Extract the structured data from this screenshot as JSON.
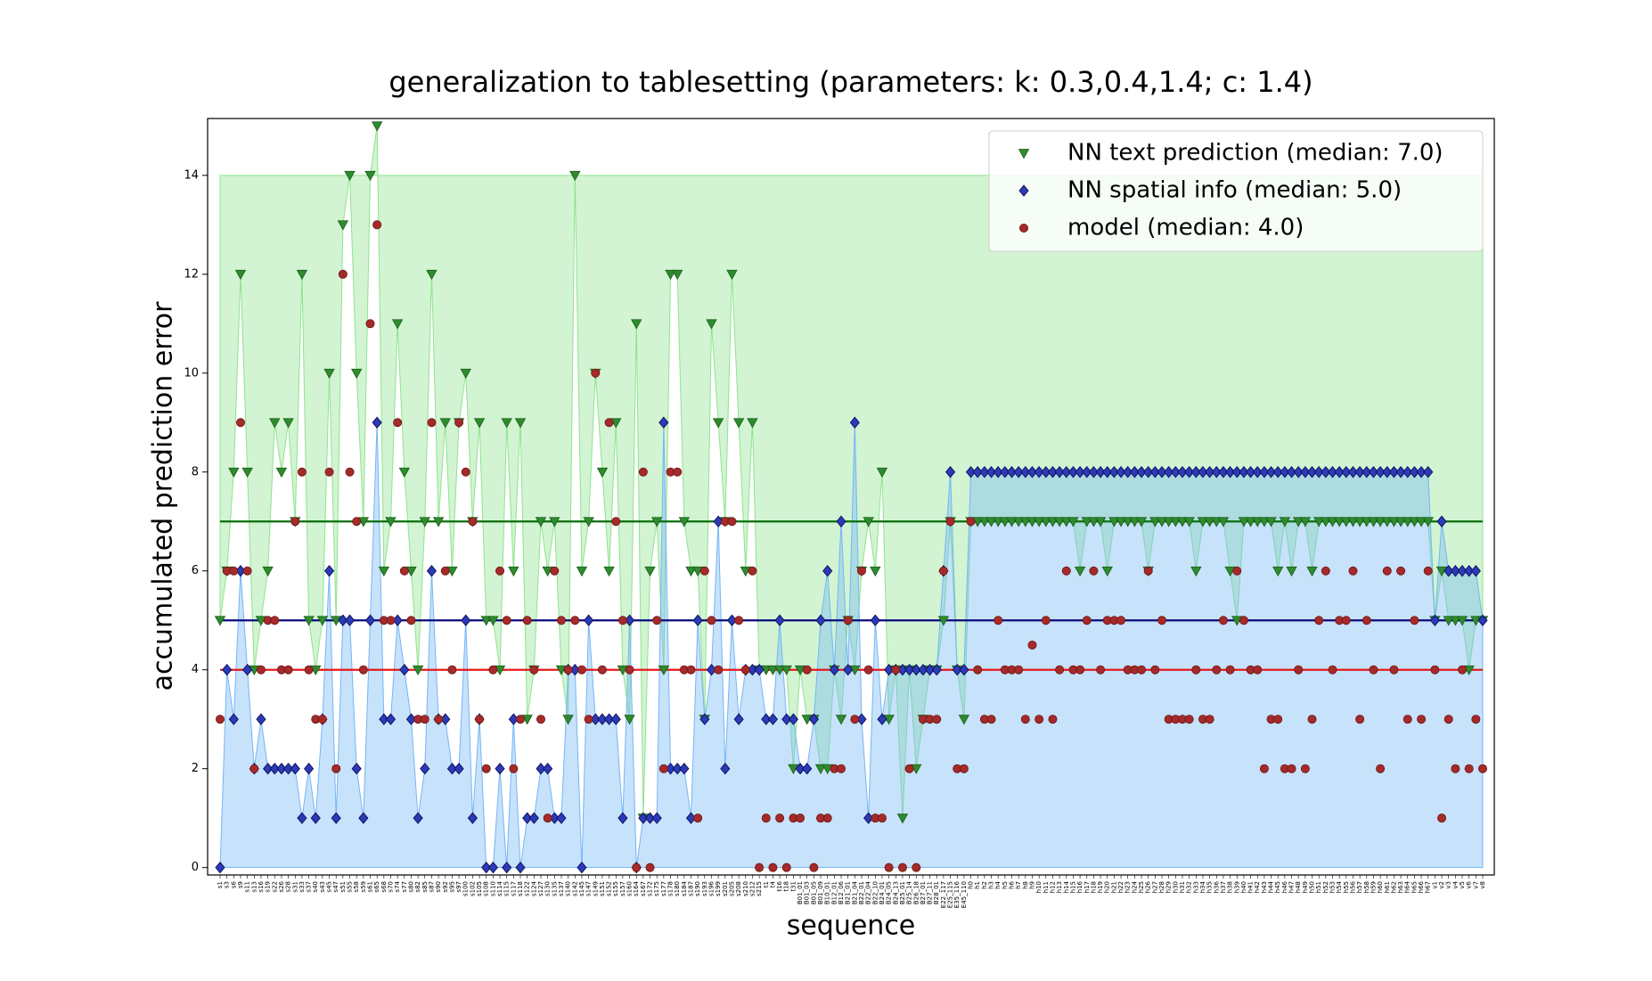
{
  "chart_data": {
    "type": "line-scatter",
    "title": "generalization to tablesetting (parameters: k: 0.3,0.4,1.4; c: 1.4)",
    "x_label": "sequence",
    "y_label": "accumulated prediction error",
    "ylim": [
      -0.15,
      15.15
    ],
    "yticks": [
      0,
      2,
      4,
      6,
      8,
      10,
      12,
      14
    ],
    "legend": "upper right",
    "categories": [
      "s1",
      "s3",
      "s6",
      "s9",
      "s11",
      "s13",
      "s16",
      "s19",
      "s22",
      "s26",
      "s28",
      "s31",
      "s33",
      "s37",
      "s40",
      "s43",
      "s45",
      "s47",
      "s51",
      "s55",
      "s58",
      "s59",
      "s61",
      "s65",
      "s68",
      "s70",
      "s74",
      "s77",
      "s80",
      "s82",
      "s85",
      "s87",
      "s90",
      "s92",
      "s95",
      "s97",
      "s100",
      "s102",
      "s105",
      "s108",
      "s110",
      "s114",
      "s115",
      "s117",
      "s118",
      "s122",
      "s124",
      "s127",
      "s130",
      "s135",
      "s137",
      "s140",
      "s142",
      "s145",
      "s147",
      "s149",
      "s151",
      "s152",
      "s155",
      "s157",
      "s160",
      "s164",
      "s167",
      "s172",
      "s175",
      "s177",
      "s178",
      "s180",
      "s184",
      "s187",
      "s190",
      "s193",
      "s196",
      "s199",
      "s201",
      "s205",
      "s208",
      "s210",
      "s212",
      "s215",
      "t1",
      "t4",
      "t16",
      "t18",
      "t31",
      "B01_01",
      "B01_03",
      "B01_05",
      "B01_09",
      "B10_01",
      "B12_01",
      "B12_06",
      "B21_01",
      "B21_04",
      "B22_01",
      "B22_04",
      "B22_10",
      "B24_01",
      "B24_05",
      "B24_13",
      "B25_01",
      "B25_14",
      "B26_18",
      "B27_01",
      "B27_11",
      "B28_01",
      "E22_117",
      "E25_115",
      "E35_116",
      "E45_110",
      "h0",
      "h1",
      "h2",
      "h3",
      "h4",
      "h5",
      "h6",
      "h7",
      "h8",
      "h9",
      "h10",
      "h11",
      "h12",
      "h13",
      "h14",
      "h15",
      "h16",
      "h17",
      "h18",
      "h19",
      "h20",
      "h21",
      "h22",
      "h23",
      "h24",
      "h25",
      "h26",
      "h27",
      "h28",
      "h29",
      "h30",
      "h31",
      "h32",
      "h33",
      "h34",
      "h35",
      "h36",
      "h37",
      "h38",
      "h39",
      "h40",
      "h41",
      "h42",
      "h43",
      "h44",
      "h45",
      "h46",
      "h47",
      "h48",
      "h49",
      "h50",
      "h51",
      "h52",
      "h53",
      "h54",
      "h55",
      "h56",
      "h57",
      "h58",
      "h59",
      "h60",
      "h61",
      "h62",
      "h63",
      "h64",
      "h65",
      "h66",
      "h67",
      "v1",
      "v2",
      "v3",
      "v4",
      "v5",
      "v6",
      "v7",
      "v8"
    ],
    "series": [
      {
        "name": "NN text prediction (median: 7.0)",
        "marker": "triangle-down",
        "color": "#2e8b2e",
        "edge_color": "#1a5e1a",
        "line_color": "#0a6e0a",
        "area_color": "#8fe38f",
        "fill_to": 14,
        "median": 7,
        "values": [
          5,
          6,
          8,
          12,
          8,
          4,
          5,
          6,
          9,
          8,
          9,
          7,
          12,
          5,
          4,
          5,
          10,
          5,
          13,
          14,
          10,
          7,
          14,
          15,
          6,
          7,
          11,
          8,
          6,
          4,
          7,
          12,
          7,
          9,
          6,
          9,
          10,
          7,
          9,
          5,
          5,
          4,
          9,
          6,
          9,
          3,
          4,
          7,
          6,
          7,
          4,
          3,
          14,
          6,
          7,
          10,
          8,
          6,
          9,
          4,
          3,
          11,
          1,
          6,
          7,
          4,
          12,
          12,
          7,
          6,
          6,
          3,
          11,
          9,
          7,
          12,
          9,
          6,
          9,
          4,
          4,
          4,
          4,
          4,
          2,
          4,
          3,
          3,
          2,
          2,
          4,
          3,
          5,
          4,
          6,
          7,
          6,
          8,
          3,
          4,
          1,
          4,
          2,
          3,
          4,
          4,
          5,
          7,
          4,
          3,
          7,
          7,
          7,
          7,
          7,
          7,
          7,
          7,
          7,
          7,
          7,
          7,
          7,
          7,
          7,
          7,
          6,
          7,
          7,
          7,
          6,
          7,
          7,
          7,
          7,
          7,
          6,
          7,
          7,
          7,
          7,
          7,
          7,
          6,
          7,
          7,
          7,
          7,
          6,
          5,
          7,
          7,
          7,
          7,
          7,
          6,
          7,
          6,
          7,
          7,
          6,
          7,
          7,
          7,
          7,
          7,
          7,
          7,
          7,
          7,
          7,
          7,
          7,
          7,
          7,
          7,
          7,
          7,
          5,
          6,
          5,
          5,
          5,
          4,
          5,
          5
        ]
      },
      {
        "name": "NN spatial info (median: 5.0)",
        "marker": "diamond",
        "color": "#2b3bb5",
        "edge_color": "#0d0d5e",
        "line_color": "#0a0a7a",
        "area_color": "#74b6f5",
        "fill_to": 0,
        "median": 5,
        "values": [
          0,
          4,
          3,
          6,
          4,
          2,
          3,
          2,
          2,
          2,
          2,
          2,
          1,
          2,
          1,
          3,
          6,
          1,
          5,
          5,
          2,
          1,
          5,
          9,
          3,
          3,
          5,
          4,
          3,
          1,
          2,
          6,
          3,
          3,
          2,
          2,
          5,
          1,
          3,
          0,
          0,
          2,
          0,
          3,
          0,
          1,
          1,
          2,
          2,
          1,
          1,
          4,
          4,
          0,
          5,
          3,
          3,
          3,
          3,
          1,
          5,
          0,
          1,
          1,
          1,
          9,
          2,
          2,
          2,
          1,
          5,
          3,
          4,
          7,
          2,
          5,
          3,
          4,
          4,
          4,
          3,
          3,
          5,
          3,
          3,
          2,
          2,
          3,
          5,
          6,
          4,
          7,
          4,
          9,
          3,
          1,
          5,
          3,
          4,
          4,
          4,
          4,
          4,
          4,
          4,
          4,
          6,
          8,
          4,
          4,
          8,
          8,
          8,
          8,
          8,
          8,
          8,
          8,
          8,
          8,
          8,
          8,
          8,
          8,
          8,
          8,
          8,
          8,
          8,
          8,
          8,
          8,
          8,
          8,
          8,
          8,
          8,
          8,
          8,
          8,
          8,
          8,
          8,
          8,
          8,
          8,
          8,
          8,
          8,
          8,
          8,
          8,
          8,
          8,
          8,
          8,
          8,
          8,
          8,
          8,
          8,
          8,
          8,
          8,
          8,
          8,
          8,
          8,
          8,
          8,
          8,
          8,
          8,
          8,
          8,
          8,
          8,
          8,
          5,
          7,
          6,
          6,
          6,
          6,
          6,
          5
        ]
      },
      {
        "name": "model (median: 4.0)",
        "marker": "circle",
        "color": "#a52a2a",
        "edge_color": "#6e1515",
        "line_color": "#e41a1a",
        "median": 4,
        "values": [
          3,
          6,
          6,
          9,
          6,
          2,
          4,
          5,
          5,
          4,
          4,
          7,
          8,
          4,
          3,
          3,
          8,
          2,
          12,
          8,
          7,
          4,
          11,
          13,
          5,
          5,
          9,
          6,
          5,
          3,
          3,
          9,
          3,
          6,
          4,
          9,
          8,
          7,
          3,
          2,
          4,
          6,
          5,
          2,
          3,
          5,
          4,
          3,
          1,
          6,
          5,
          4,
          5,
          4,
          3,
          10,
          4,
          9,
          7,
          5,
          4,
          0,
          8,
          0,
          5,
          2,
          8,
          8,
          4,
          4,
          1,
          6,
          5,
          4,
          7,
          7,
          5,
          4,
          6,
          0,
          1,
          0,
          1,
          0,
          1,
          1,
          4,
          0,
          1,
          1,
          2,
          2,
          5,
          3,
          6,
          4,
          1,
          1,
          0,
          4,
          0,
          2,
          0,
          3,
          3,
          3,
          6,
          7,
          2,
          2,
          7,
          4,
          3,
          3,
          5,
          4,
          4,
          4,
          3,
          4.5,
          3,
          5,
          3,
          4,
          6,
          4,
          4,
          5,
          6,
          4,
          5,
          5,
          5,
          4,
          4,
          4,
          6,
          4,
          5,
          3,
          3,
          3,
          3,
          4,
          3,
          3,
          4,
          5,
          4,
          6,
          5,
          4,
          4,
          2,
          3,
          3,
          2,
          2,
          4,
          2,
          3,
          5,
          6,
          4,
          5,
          5,
          6,
          3,
          5,
          4,
          2,
          6,
          4,
          6,
          3,
          5,
          3,
          6,
          4,
          1,
          3,
          2,
          4,
          2,
          3,
          2
        ]
      }
    ]
  }
}
